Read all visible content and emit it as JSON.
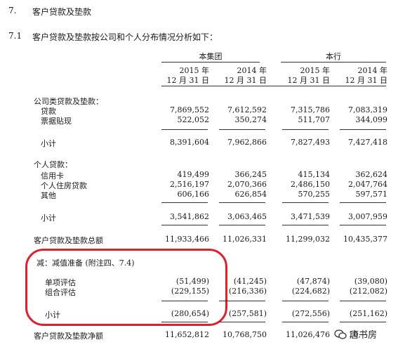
{
  "section": {
    "num": "7.",
    "title": "客户贷款及垫款"
  },
  "subsection": {
    "num": "7.1",
    "title": "客户贷款及垫款按公司和个人分布情况分析如下："
  },
  "groups": [
    "本集团",
    "本行"
  ],
  "years": [
    "2015 年",
    "2014 年",
    "2015 年",
    "2014 年"
  ],
  "dates": [
    "12 月 31 日",
    "12 月 31 日",
    "12 月 31 日",
    "12 月 31 日"
  ],
  "rows": [
    {
      "label": "公司类贷款及垫款：",
      "values": [
        "",
        "",
        "",
        ""
      ]
    },
    {
      "label": "贷款",
      "values": [
        "7,869,552",
        "7,612,592",
        "7,315,786",
        "7,083,319"
      ]
    },
    {
      "label": "票据贴现",
      "values": [
        "522,052",
        "350,274",
        "511,707",
        "344,099"
      ]
    },
    {
      "label": "小计",
      "values": [
        "8,391,604",
        "7,962,866",
        "7,827,493",
        "7,427,418"
      ]
    },
    {
      "label": "个人贷款：",
      "values": [
        "",
        "",
        "",
        ""
      ]
    },
    {
      "label": "信用卡",
      "values": [
        "419,499",
        "366,245",
        "415,134",
        "362,624"
      ]
    },
    {
      "label": "个人住房贷款",
      "values": [
        "2,516,197",
        "2,070,366",
        "2,486,150",
        "2,047,764"
      ]
    },
    {
      "label": "其他",
      "values": [
        "606,166",
        "626,854",
        "570,255",
        "597,571"
      ]
    },
    {
      "label": "小计",
      "values": [
        "3,541,862",
        "3,063,465",
        "3,471,539",
        "3,007,959"
      ]
    },
    {
      "label": "客户贷款及垫款总额",
      "values": [
        "11,933,466",
        "11,026,331",
        "11,299,032",
        "10,435,377"
      ]
    },
    {
      "label": "减：减值准备 (附注四、7.4)",
      "values": [
        "",
        "",
        "",
        ""
      ]
    },
    {
      "label": "单项评估",
      "values": [
        "(51,499)",
        "(41,245)",
        "(47,874)",
        "(39,080)"
      ]
    },
    {
      "label": "组合评估",
      "values": [
        "(229,155)",
        "(216,336)",
        "(224,682)",
        "(212,082)"
      ]
    },
    {
      "label": "小计",
      "values": [
        "(280,654)",
        "(257,581)",
        "(272,556)",
        "(251,162)"
      ]
    },
    {
      "label": "客户贷款及垫款净额",
      "values": [
        "11,652,812",
        "10,768,750",
        "11,026,476",
        "10,"
      ]
    }
  ],
  "watermark": "唐书房"
}
